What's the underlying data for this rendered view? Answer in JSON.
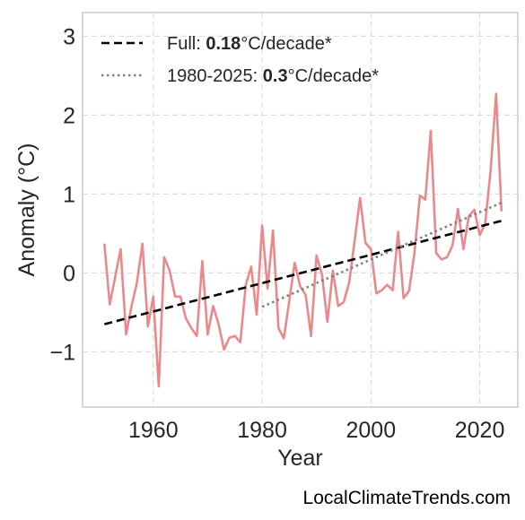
{
  "chart_data": {
    "type": "line",
    "title": "",
    "xlabel": "Year",
    "ylabel": "Anomaly (°C)",
    "xlim": [
      1947,
      2027
    ],
    "ylim": [
      -1.7,
      3.3
    ],
    "xticks": [
      1960,
      1980,
      2000,
      2020
    ],
    "xtick_labels": [
      "1960",
      "1980",
      "2000",
      "2020"
    ],
    "yticks": [
      -1,
      0,
      1,
      2,
      3
    ],
    "ytick_labels": [
      "−1",
      "0",
      "1",
      "2",
      "3"
    ],
    "grid": true,
    "legend_position": "top-left",
    "series": [
      {
        "color": "#e88a8c",
        "x": [
          1951,
          1952,
          1953,
          1954,
          1955,
          1956,
          1957,
          1958,
          1959,
          1960,
          1961,
          1962,
          1963,
          1964,
          1965,
          1966,
          1967,
          1968,
          1969,
          1970,
          1971,
          1972,
          1973,
          1974,
          1975,
          1976,
          1977,
          1978,
          1979,
          1980,
          1981,
          1982,
          1983,
          1984,
          1985,
          1986,
          1987,
          1988,
          1989,
          1990,
          1991,
          1992,
          1993,
          1994,
          1995,
          1996,
          1997,
          1998,
          1999,
          2000,
          2001,
          2002,
          2003,
          2004,
          2005,
          2006,
          2007,
          2008,
          2009,
          2010,
          2011,
          2012,
          2013,
          2014,
          2015,
          2016,
          2017,
          2018,
          2019,
          2020,
          2021,
          2022,
          2023,
          2024
        ],
        "y": [
          0.37,
          -0.4,
          -0.05,
          0.3,
          -0.78,
          -0.42,
          -0.12,
          0.37,
          -0.68,
          -0.3,
          -1.44,
          0.2,
          0.03,
          -0.3,
          -0.3,
          -0.58,
          -0.7,
          -0.8,
          0.15,
          -0.78,
          -0.42,
          -0.65,
          -0.97,
          -0.82,
          -0.8,
          -0.88,
          -0.15,
          0.08,
          -0.53,
          0.6,
          -0.2,
          0.54,
          -0.7,
          -0.83,
          -0.35,
          0.13,
          -0.17,
          -0.28,
          -0.8,
          0.22,
          -0.02,
          -0.62,
          0.03,
          -0.42,
          -0.37,
          -0.12,
          0.4,
          0.95,
          0.38,
          0.3,
          -0.26,
          -0.22,
          -0.15,
          -0.22,
          0.52,
          -0.32,
          -0.23,
          0.25,
          0.98,
          0.93,
          1.8,
          0.25,
          0.17,
          0.2,
          0.35,
          0.81,
          0.3,
          0.72,
          0.8,
          0.48,
          0.62,
          1.3,
          2.27,
          0.78
        ]
      },
      {
        "name": "Full: 0.18°C/decade*",
        "name_prefix": "Full: ",
        "name_bold": "0.18",
        "name_suffix": "°C/decade*",
        "color": "#000000",
        "style": "dashed",
        "x": [
          1951,
          2024
        ],
        "y": [
          -0.65,
          0.66
        ]
      },
      {
        "name": "1980-2025: 0.3°C/decade*",
        "name_prefix": "1980-2025: ",
        "name_bold": "0.3",
        "name_suffix": "°C/decade*",
        "color": "#808080",
        "style": "dotted",
        "x": [
          1980,
          2024
        ],
        "y": [
          -0.43,
          0.89
        ]
      }
    ]
  },
  "watermark": "LocalClimateTrends.com"
}
